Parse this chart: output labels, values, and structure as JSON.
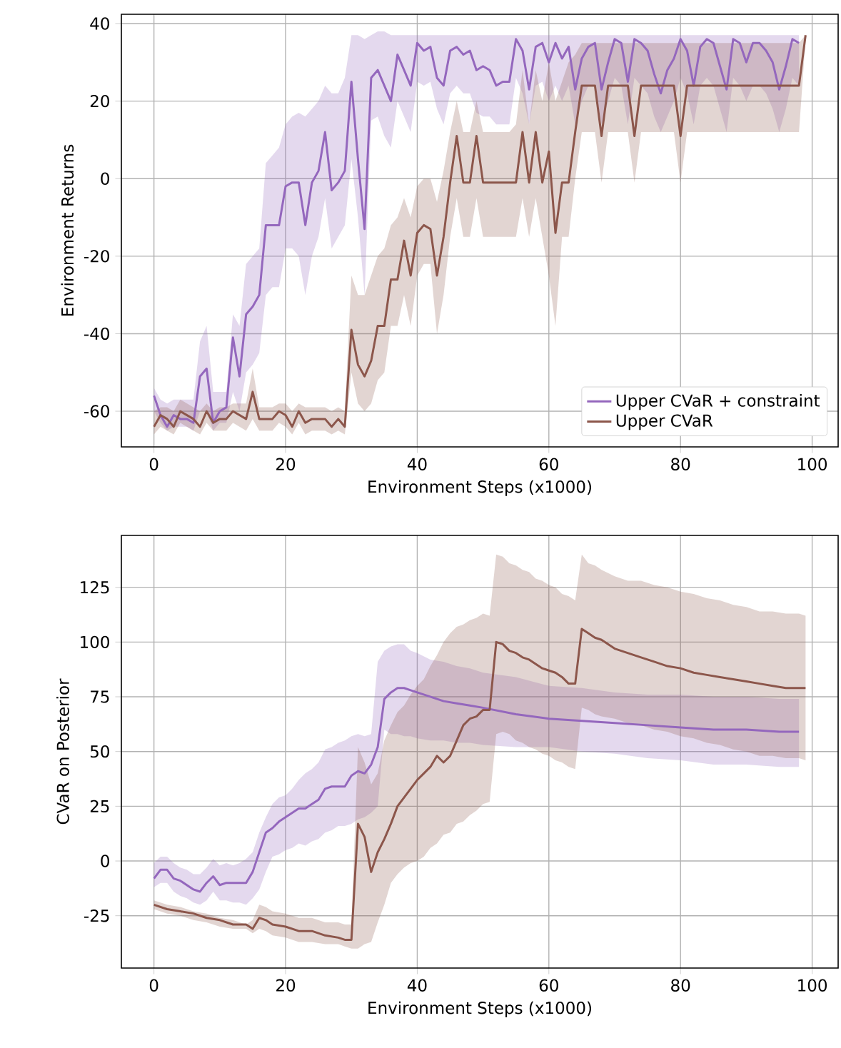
{
  "chart_data": [
    {
      "type": "line",
      "xlabel": "Environment Steps (x1000)",
      "ylabel": "Environment Returns",
      "xlim": [
        -4.95,
        103.95
      ],
      "ylim": [
        -69.2,
        42.4
      ],
      "xticks": [
        0,
        20,
        40,
        60,
        80,
        100
      ],
      "yticks": [
        -60,
        -40,
        -20,
        0,
        20,
        40
      ],
      "grid": true,
      "legend": "bottom right",
      "series": [
        {
          "name": "Upper CVaR + constraint",
          "color": "#9467bd",
          "x": [
            0,
            1,
            2,
            3,
            4,
            5,
            6,
            7,
            8,
            9,
            10,
            11,
            12,
            13,
            14,
            15,
            16,
            17,
            18,
            19,
            20,
            21,
            22,
            23,
            24,
            25,
            26,
            27,
            28,
            29,
            30,
            31,
            32,
            33,
            34,
            35,
            36,
            37,
            38,
            39,
            40,
            41,
            42,
            43,
            44,
            45,
            46,
            47,
            48,
            49,
            50,
            51,
            52,
            53,
            54,
            55,
            56,
            57,
            58,
            59,
            60,
            61,
            62,
            63,
            64,
            65,
            66,
            67,
            68,
            69,
            70,
            71,
            72,
            73,
            74,
            75,
            76,
            77,
            78,
            79,
            80,
            81,
            82,
            83,
            84,
            85,
            86,
            87,
            88,
            89,
            90,
            91,
            92,
            93,
            94,
            95,
            96,
            97,
            98
          ],
          "values": [
            -56,
            -61,
            -64,
            -61,
            -62,
            -62,
            -63,
            -51,
            -49,
            -63,
            -60,
            -59,
            -41,
            -51,
            -35,
            -33,
            -30,
            -12,
            -12,
            -12,
            -2,
            -1,
            -1,
            -12,
            -1,
            2,
            12,
            -3,
            -1,
            2,
            25,
            5,
            -13,
            26,
            28,
            24,
            20,
            32,
            28,
            24,
            35,
            33,
            34,
            26,
            24,
            33,
            34,
            32,
            33,
            28,
            29,
            28,
            24,
            25,
            25,
            36,
            33,
            23,
            34,
            35,
            30,
            35,
            31,
            34,
            23,
            31,
            34,
            35,
            23,
            30,
            36,
            35,
            25,
            36,
            35,
            33,
            27,
            22,
            28,
            31,
            36,
            33,
            24,
            34,
            36,
            35,
            29,
            23,
            36,
            35,
            30,
            35,
            35,
            33,
            30,
            23,
            29,
            36,
            35
          ],
          "upper": [
            -54,
            -57,
            -58,
            -57,
            -57,
            -57,
            -57,
            -42,
            -38,
            -55,
            -55,
            -55,
            -35,
            -38,
            -22,
            -20,
            -18,
            4,
            6,
            8,
            14,
            16,
            17,
            16,
            18,
            20,
            24,
            22,
            22,
            26,
            37,
            37,
            36,
            37,
            38,
            38,
            37,
            37,
            37,
            37,
            37,
            37,
            37,
            37,
            37,
            37,
            37,
            37,
            37,
            37,
            37,
            37,
            37,
            37,
            37,
            37,
            37,
            37,
            37,
            37,
            37,
            37,
            37,
            37,
            37,
            37,
            37,
            37,
            37,
            37,
            37,
            37,
            37,
            37,
            37,
            37,
            37,
            37,
            37,
            37,
            37,
            37,
            37,
            37,
            37,
            37,
            37,
            37,
            37,
            37,
            37,
            37,
            37,
            37,
            37,
            37,
            37,
            37,
            37
          ],
          "lower": [
            -60,
            -63,
            -65,
            -64,
            -64,
            -64,
            -65,
            -60,
            -60,
            -65,
            -63,
            -63,
            -55,
            -60,
            -50,
            -48,
            -45,
            -30,
            -28,
            -28,
            -18,
            -18,
            -20,
            -30,
            -20,
            -15,
            -5,
            -18,
            -15,
            -12,
            5,
            -10,
            -30,
            15,
            16,
            11,
            8,
            20,
            16,
            12,
            25,
            24,
            25,
            18,
            14,
            22,
            24,
            22,
            22,
            17,
            16,
            16,
            14,
            14,
            14,
            26,
            22,
            14,
            24,
            25,
            20,
            24,
            20,
            24,
            14,
            20,
            24,
            24,
            14,
            20,
            26,
            24,
            14,
            26,
            24,
            22,
            16,
            12,
            16,
            20,
            26,
            22,
            14,
            24,
            26,
            24,
            18,
            12,
            26,
            24,
            20,
            24,
            24,
            22,
            18,
            12,
            18,
            26,
            24
          ]
        },
        {
          "name": "Upper CVaR",
          "color": "#8c564b",
          "x": [
            0,
            1,
            2,
            3,
            4,
            5,
            6,
            7,
            8,
            9,
            10,
            11,
            12,
            13,
            14,
            15,
            16,
            17,
            18,
            19,
            20,
            21,
            22,
            23,
            24,
            25,
            26,
            27,
            28,
            29,
            30,
            31,
            32,
            33,
            34,
            35,
            36,
            37,
            38,
            39,
            40,
            41,
            42,
            43,
            44,
            45,
            46,
            47,
            48,
            49,
            50,
            51,
            52,
            53,
            54,
            55,
            56,
            57,
            58,
            59,
            60,
            61,
            62,
            63,
            64,
            65,
            66,
            67,
            68,
            69,
            70,
            71,
            72,
            73,
            74,
            75,
            76,
            77,
            78,
            79,
            80,
            81,
            82,
            83,
            84,
            85,
            86,
            87,
            88,
            89,
            90,
            91,
            92,
            93,
            94,
            95,
            96,
            97,
            98,
            99
          ],
          "values": [
            -64,
            -61,
            -62,
            -64,
            -60,
            -61,
            -62,
            -64,
            -60,
            -63,
            -62,
            -62,
            -60,
            -61,
            -62,
            -55,
            -62,
            -62,
            -62,
            -60,
            -61,
            -64,
            -60,
            -63,
            -62,
            -62,
            -62,
            -64,
            -62,
            -64,
            -39,
            -48,
            -51,
            -47,
            -38,
            -38,
            -26,
            -26,
            -16,
            -25,
            -14,
            -12,
            -13,
            -25,
            -15,
            -1,
            11,
            -1,
            -1,
            11,
            -1,
            -1,
            -1,
            -1,
            -1,
            -1,
            12,
            -1,
            12,
            -1,
            7,
            -14,
            -1,
            -1,
            12,
            24,
            24,
            24,
            11,
            24,
            24,
            24,
            24,
            11,
            24,
            24,
            24,
            24,
            24,
            24,
            11,
            24,
            24,
            24,
            24,
            24,
            24,
            24,
            24,
            24,
            24,
            24,
            24,
            24,
            24,
            24,
            24,
            24,
            24,
            37
          ],
          "upper": [
            -60,
            -59,
            -59,
            -60,
            -57,
            -58,
            -59,
            -60,
            -58,
            -60,
            -59,
            -59,
            -58,
            -58,
            -58,
            -49,
            -59,
            -59,
            -59,
            -58,
            -58,
            -60,
            -58,
            -59,
            -59,
            -59,
            -59,
            -60,
            -59,
            -60,
            -25,
            -30,
            -30,
            -25,
            -20,
            -18,
            -12,
            -10,
            -5,
            -10,
            -2,
            0,
            0,
            -6,
            2,
            12,
            20,
            12,
            12,
            20,
            12,
            12,
            12,
            12,
            12,
            14,
            28,
            14,
            28,
            20,
            30,
            20,
            25,
            30,
            32,
            35,
            35,
            35,
            35,
            35,
            35,
            35,
            35,
            35,
            35,
            35,
            35,
            35,
            35,
            35,
            35,
            35,
            35,
            35,
            35,
            35,
            35,
            35,
            35,
            35,
            35,
            35,
            35,
            35,
            35,
            35,
            35,
            35,
            35,
            37
          ],
          "lower": [
            -66,
            -64,
            -65,
            -66,
            -63,
            -64,
            -65,
            -66,
            -63,
            -65,
            -65,
            -65,
            -63,
            -64,
            -65,
            -62,
            -65,
            -65,
            -65,
            -63,
            -64,
            -66,
            -63,
            -66,
            -65,
            -65,
            -65,
            -66,
            -65,
            -66,
            -50,
            -58,
            -60,
            -58,
            -52,
            -50,
            -38,
            -38,
            -30,
            -38,
            -25,
            -22,
            -22,
            -40,
            -30,
            -15,
            -5,
            -15,
            -15,
            -5,
            -15,
            -15,
            -15,
            -15,
            -15,
            -15,
            -5,
            -15,
            -5,
            -15,
            -25,
            -38,
            -15,
            -15,
            0,
            12,
            12,
            12,
            -1,
            12,
            12,
            12,
            12,
            -1,
            12,
            12,
            12,
            12,
            12,
            12,
            -1,
            12,
            12,
            12,
            12,
            12,
            12,
            12,
            12,
            12,
            12,
            12,
            12,
            12,
            12,
            12,
            12,
            12,
            12,
            36
          ]
        }
      ]
    },
    {
      "type": "line",
      "xlabel": "Environment Steps (x1000)",
      "ylabel": "CVaR on Posterior",
      "xlim": [
        -4.95,
        103.95
      ],
      "ylim": [
        -48.9,
        148.7
      ],
      "xticks": [
        0,
        20,
        40,
        60,
        80,
        100
      ],
      "yticks": [
        -25,
        0,
        25,
        50,
        75,
        100,
        125
      ],
      "grid": true,
      "series": [
        {
          "color": "#9467bd",
          "x": [
            0,
            1,
            2,
            3,
            4,
            5,
            6,
            7,
            8,
            9,
            10,
            11,
            12,
            13,
            14,
            15,
            16,
            17,
            18,
            19,
            20,
            21,
            22,
            23,
            24,
            25,
            26,
            27,
            28,
            29,
            30,
            31,
            32,
            33,
            34,
            35,
            36,
            37,
            38,
            39,
            40,
            42,
            44,
            46,
            48,
            50,
            55,
            60,
            65,
            70,
            75,
            80,
            85,
            90,
            95,
            98
          ],
          "values": [
            -8,
            -4,
            -4,
            -8,
            -9,
            -11,
            -13,
            -14,
            -10,
            -7,
            -11,
            -10,
            -10,
            -10,
            -10,
            -5,
            4,
            13,
            15,
            18,
            20,
            22,
            24,
            24,
            26,
            28,
            33,
            34,
            34,
            34,
            39,
            41,
            40,
            44,
            52,
            74,
            77,
            79,
            79,
            78,
            77,
            75,
            73,
            72,
            71,
            70,
            67,
            65,
            64,
            63,
            62,
            61,
            60,
            60,
            59,
            59
          ],
          "upper": [
            -1,
            2,
            2,
            -1,
            -3,
            -4,
            -6,
            -6,
            -3,
            1,
            -2,
            -1,
            -2,
            -1,
            1,
            4,
            13,
            20,
            26,
            29,
            30,
            33,
            37,
            40,
            42,
            45,
            51,
            52,
            54,
            55,
            57,
            58,
            57,
            58,
            91,
            96,
            98,
            99,
            99,
            96,
            95,
            92,
            91,
            89,
            88,
            86,
            84,
            80,
            79,
            77,
            76,
            76,
            75,
            75,
            74,
            74
          ],
          "lower": [
            -12,
            -10,
            -10,
            -14,
            -16,
            -17,
            -19,
            -20,
            -18,
            -14,
            -18,
            -18,
            -19,
            -19,
            -20,
            -17,
            -13,
            -5,
            2,
            3,
            5,
            6,
            8,
            7,
            9,
            10,
            13,
            14,
            16,
            16,
            17,
            19,
            20,
            22,
            25,
            60,
            58,
            58,
            57,
            57,
            56,
            55,
            55,
            54,
            54,
            53,
            52,
            52,
            50,
            49,
            47,
            46,
            44,
            44,
            43,
            43
          ]
        },
        {
          "color": "#8c564b",
          "x": [
            0,
            2,
            4,
            6,
            8,
            10,
            12,
            14,
            15,
            16,
            17,
            18,
            20,
            22,
            24,
            26,
            28,
            29,
            30,
            31,
            32,
            33,
            34,
            35,
            36,
            37,
            38,
            39,
            40,
            41,
            42,
            43,
            44,
            45,
            46,
            47,
            48,
            49,
            50,
            51,
            52,
            53,
            54,
            55,
            56,
            57,
            58,
            59,
            60,
            61,
            62,
            63,
            64,
            65,
            66,
            67,
            68,
            70,
            72,
            74,
            76,
            78,
            80,
            82,
            84,
            86,
            88,
            90,
            92,
            94,
            96,
            98,
            99
          ],
          "values": [
            -20,
            -22,
            -23,
            -24,
            -26,
            -27,
            -29,
            -29,
            -31,
            -26,
            -27,
            -29,
            -30,
            -32,
            -32,
            -34,
            -35,
            -36,
            -36,
            17,
            11,
            -5,
            4,
            10,
            17,
            25,
            29,
            33,
            37,
            40,
            43,
            48,
            45,
            48,
            55,
            62,
            65,
            66,
            69,
            69,
            100,
            99,
            96,
            95,
            93,
            92,
            90,
            88,
            87,
            86,
            84,
            81,
            81,
            106,
            104,
            102,
            101,
            97,
            95,
            93,
            91,
            89,
            88,
            86,
            85,
            84,
            83,
            82,
            81,
            80,
            79,
            79,
            79
          ],
          "upper": [
            -18,
            -20,
            -21,
            -23,
            -24,
            -26,
            -27,
            -29,
            -27,
            -20,
            -21,
            -23,
            -24,
            -26,
            -26,
            -28,
            -28,
            -29,
            -29,
            52,
            45,
            35,
            40,
            55,
            62,
            68,
            71,
            76,
            80,
            83,
            89,
            94,
            100,
            104,
            107,
            108,
            110,
            111,
            113,
            112,
            140,
            139,
            136,
            135,
            133,
            132,
            129,
            128,
            126,
            125,
            122,
            121,
            119,
            140,
            136,
            135,
            133,
            130,
            128,
            128,
            126,
            125,
            123,
            122,
            120,
            119,
            117,
            116,
            114,
            114,
            113,
            113,
            112
          ],
          "lower": [
            -22,
            -24,
            -25,
            -27,
            -28,
            -30,
            -31,
            -31,
            -33,
            -31,
            -32,
            -34,
            -35,
            -37,
            -37,
            -38,
            -38,
            -39,
            -40,
            -40,
            -38,
            -37,
            -28,
            -20,
            -10,
            -6,
            -3,
            -1,
            0,
            2,
            6,
            8,
            12,
            13,
            17,
            18,
            21,
            23,
            26,
            27,
            58,
            59,
            58,
            55,
            54,
            52,
            51,
            49,
            48,
            46,
            45,
            43,
            42,
            70,
            69,
            67,
            66,
            65,
            63,
            62,
            60,
            59,
            57,
            56,
            54,
            53,
            51,
            50,
            48,
            48,
            47,
            47,
            46
          ]
        }
      ]
    }
  ]
}
